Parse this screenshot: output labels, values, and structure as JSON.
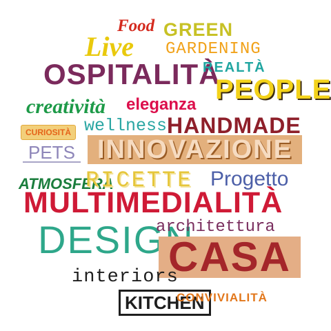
{
  "words": {
    "food": {
      "text": "Food",
      "color": "#d42a1e"
    },
    "green": {
      "text": "GREEN",
      "color": "#c7c125"
    },
    "live": {
      "text": "Live",
      "color": "#e9c90d"
    },
    "gardening": {
      "text": "GARDENING",
      "color": "#f1a21a"
    },
    "ospitalita": {
      "text": "OSPITALITÀ",
      "color": "#7b2a5c"
    },
    "realta": {
      "text": "REALTÀ",
      "color": "#1fa5a0"
    },
    "people": {
      "text": "PEOPLE",
      "color": "#f3d21a"
    },
    "creativita": {
      "text": "creatività",
      "color": "#1d9a48"
    },
    "eleganza": {
      "text": "eleganza",
      "color": "#dc0f4c"
    },
    "curiosita": {
      "text": "CURIOSITÀ",
      "color": "#e5641a"
    },
    "wellness": {
      "text": "wellness",
      "color": "#2aa6a3"
    },
    "handmade": {
      "text": "HANDMADE",
      "color": "#8e1f2a"
    },
    "pets": {
      "text": "PETS",
      "color": "#8e86b9"
    },
    "innovazione": {
      "text": "INNOVAZIONE",
      "color": "#f6dbc1"
    },
    "atmosfera": {
      "text": "ATMOSFERA",
      "color": "#1a7d3c"
    },
    "ricette": {
      "text": "RICETTE",
      "color": "#e6c63b"
    },
    "progetto": {
      "text": "Progetto",
      "color": "#4c5fa8"
    },
    "multimedialita": {
      "text": "MULTIMEDIALITÀ",
      "color": "#cf1a36"
    },
    "design": {
      "text": "DESIGN",
      "color": "#2ea78a"
    },
    "architettura": {
      "text": "architettura",
      "color": "#7a2f5f"
    },
    "casa": {
      "text": "CASA",
      "color": "#a4262a"
    },
    "interiors": {
      "text": "interiors",
      "color": "#1e1e1e"
    },
    "kitchen": {
      "text": "KITCHEN",
      "color": "#1e1e1e"
    },
    "convivialita": {
      "text": "CONVIVIALITÀ",
      "color": "#e2771b"
    }
  }
}
